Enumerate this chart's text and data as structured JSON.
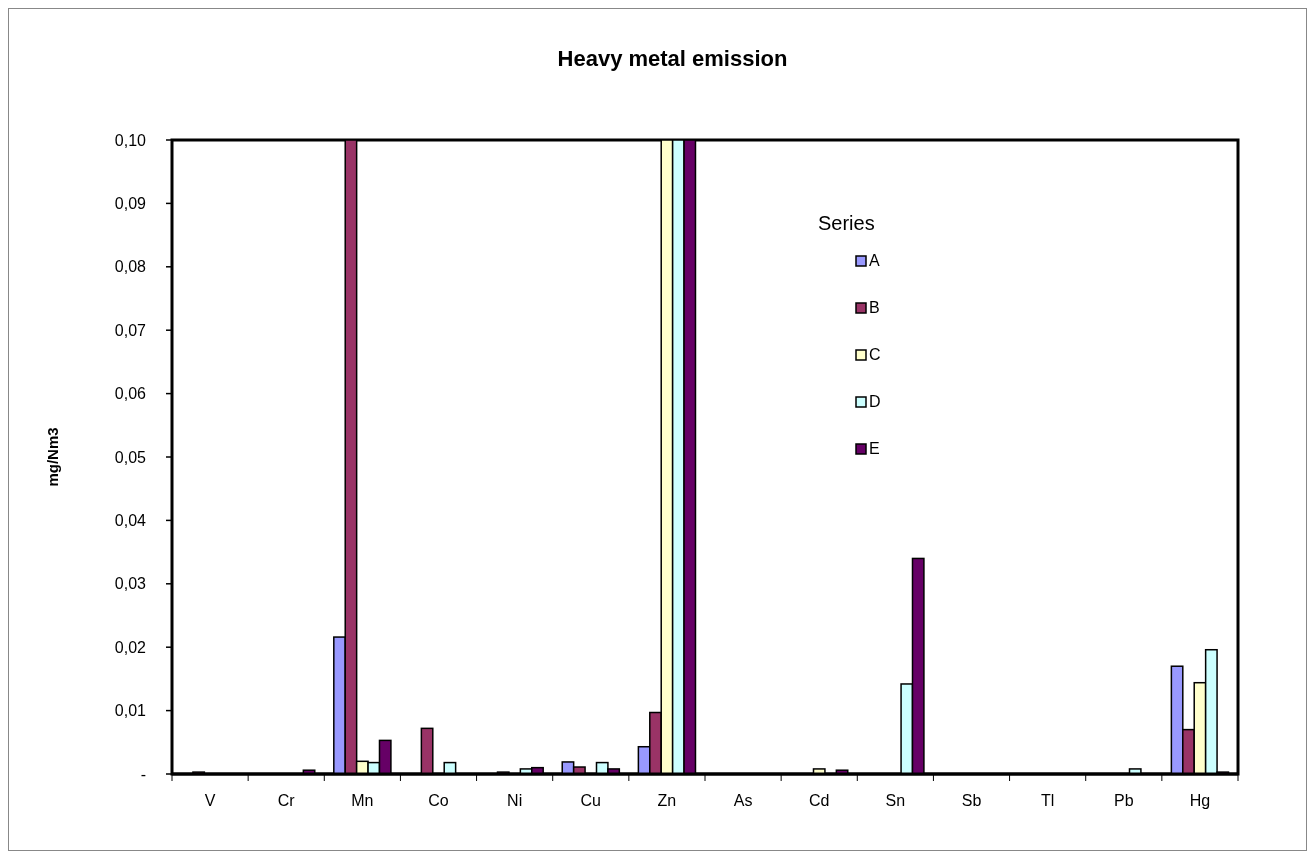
{
  "chart_data": {
    "type": "bar",
    "title": "Heavy metal emission",
    "ylabel": "mg/Nm3",
    "legend_title": "Series",
    "legend": "top right",
    "grid": false,
    "categories": [
      "V",
      "Cr",
      "Mn",
      "Co",
      "Ni",
      "Cu",
      "Zn",
      "As",
      "Cd",
      "Sn",
      "Sb",
      "Tl",
      "Pb",
      "Hg"
    ],
    "ylim": [
      0,
      0.1
    ],
    "yticks": [
      {
        "value": 0,
        "label": "-"
      },
      {
        "value": 0.01,
        "label": "0,01"
      },
      {
        "value": 0.02,
        "label": "0,02"
      },
      {
        "value": 0.03,
        "label": "0,03"
      },
      {
        "value": 0.04,
        "label": "0,04"
      },
      {
        "value": 0.05,
        "label": "0,05"
      },
      {
        "value": 0.06,
        "label": "0,06"
      },
      {
        "value": 0.07,
        "label": "0,07"
      },
      {
        "value": 0.08,
        "label": "0,08"
      },
      {
        "value": 0.09,
        "label": "0,09"
      },
      {
        "value": 0.1,
        "label": "0,10"
      }
    ],
    "series": [
      {
        "name": "A",
        "color": "#9999ff",
        "values": [
          0,
          0,
          0.0216,
          0,
          0,
          0.0019,
          0.0043,
          0,
          0,
          0,
          0,
          0,
          0,
          0.017
        ]
      },
      {
        "name": "B",
        "color": "#993366",
        "values": [
          0.0003,
          null,
          0.1,
          0.0072,
          0.0003,
          0.0011,
          0.0097,
          0,
          0,
          0,
          0,
          0,
          null,
          0.007
        ]
      },
      {
        "name": "C",
        "color": "#ffffcc",
        "values": [
          0,
          0,
          0.002,
          0,
          0,
          0,
          0.1,
          0,
          0.0008,
          0,
          0,
          0,
          0,
          0.0144
        ]
      },
      {
        "name": "D",
        "color": "#ccffff",
        "values": [
          0,
          0,
          0.0018,
          0.0018,
          0.0008,
          0.0018,
          0.1,
          0,
          null,
          0.0142,
          0,
          0,
          0.0008,
          0.0196
        ]
      },
      {
        "name": "E",
        "color": "#660066",
        "values": [
          null,
          0.0006,
          0.0053,
          null,
          0.001,
          0.0008,
          0.1,
          0,
          0.0006,
          0.034,
          0,
          0,
          0,
          0.0003
        ]
      }
    ]
  }
}
